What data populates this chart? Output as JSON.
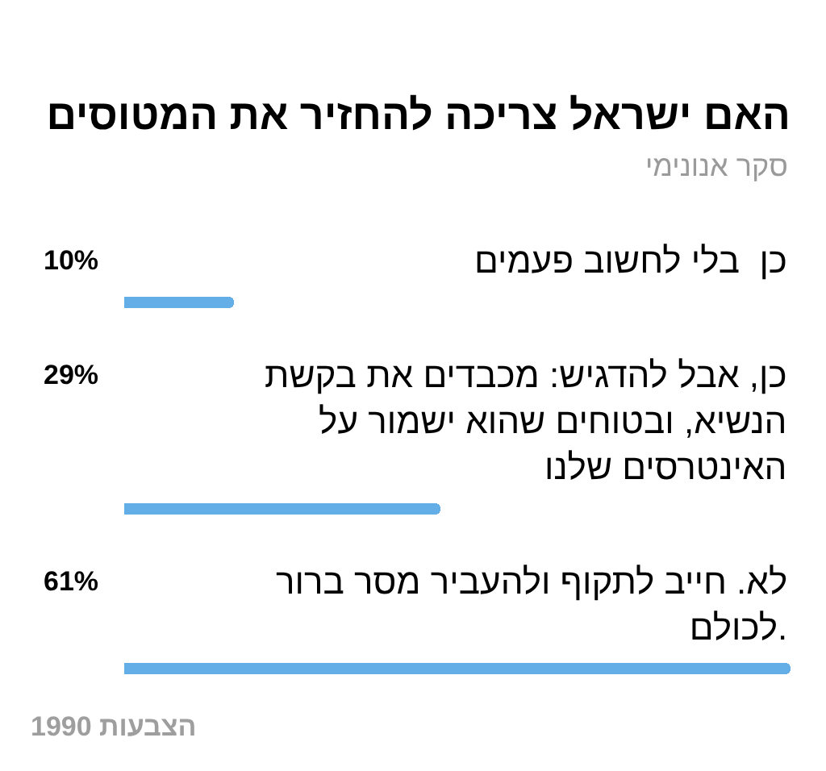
{
  "chart_data": {
    "type": "bar",
    "orientation": "horizontal",
    "title": "האם ישראל צריכה להחזיר את המטוסים",
    "subtitle": "סקר אנונימי",
    "categories": [
      "כן  בלי לחשוב פעמים",
      "כן, אבל להדגיש: מכבדים את בקשת הנשיא, ובטוחים שהוא ישמור על האינטרסים שלנו",
      "לא. חייב לתקוף ולהעביר מסר ברור לכולם."
    ],
    "values": [
      10,
      29,
      61
    ],
    "value_labels": [
      "10%",
      "29%",
      "61%"
    ],
    "color": "#64aee8",
    "annotations": [
      "1990 הצבעות"
    ]
  }
}
